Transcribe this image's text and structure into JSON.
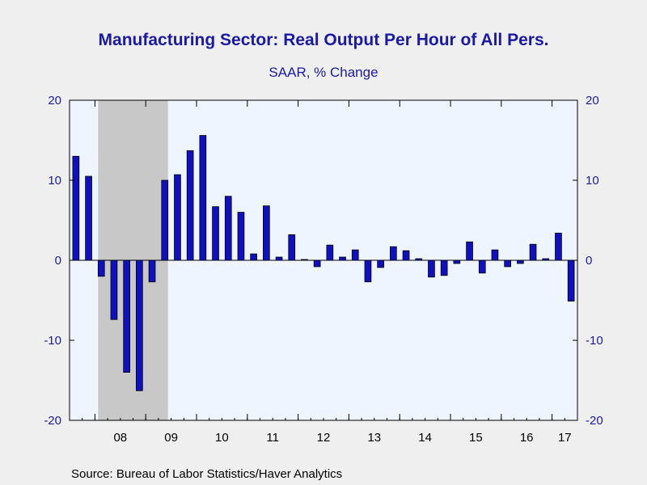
{
  "header": {
    "title": "Manufacturing Sector: Real Output Per Hour of All Pers.",
    "subtitle": "SAAR, % Change"
  },
  "footer": {
    "source": "Source:  Bureau of Labor Statistics/Haver Analytics"
  },
  "colors": {
    "background": "#efefef",
    "plot_background": "#eef5ff",
    "recession_shade": "#c8c8c8",
    "bar_fill": "#1010c0",
    "bar_stroke": "#000000",
    "text_blue": "#1a1aa6"
  },
  "chart_data": {
    "type": "bar",
    "y_ticks_left": [
      "20",
      "10",
      "0",
      "-10",
      "-20"
    ],
    "y_ticks_right": [
      "20",
      "10",
      "0",
      "-10",
      "-20"
    ],
    "y_tick_values": [
      20,
      10,
      0,
      -10,
      -20
    ],
    "x_tick_labels": [
      "08",
      "09",
      "10",
      "11",
      "12",
      "13",
      "14",
      "15",
      "16",
      "17"
    ],
    "ylim": [
      -20,
      20
    ],
    "grid": false,
    "recession": {
      "start_quarter": "2008Q1",
      "end_quarter": "2009Q2"
    },
    "categories": [
      "2007Q3",
      "2007Q4",
      "2008Q1",
      "2008Q2",
      "2008Q3",
      "2008Q4",
      "2009Q1",
      "2009Q2",
      "2009Q3",
      "2009Q4",
      "2010Q1",
      "2010Q2",
      "2010Q3",
      "2010Q4",
      "2011Q1",
      "2011Q2",
      "2011Q3",
      "2011Q4",
      "2012Q1",
      "2012Q2",
      "2012Q3",
      "2012Q4",
      "2013Q1",
      "2013Q2",
      "2013Q3",
      "2013Q4",
      "2014Q1",
      "2014Q2",
      "2014Q3",
      "2014Q4",
      "2015Q1",
      "2015Q2",
      "2015Q3",
      "2015Q4",
      "2016Q1",
      "2016Q2",
      "2016Q3",
      "2016Q4",
      "2017Q1",
      "2017Q2"
    ],
    "values": [
      13.0,
      10.5,
      -2.0,
      -7.4,
      -14.0,
      -16.3,
      -2.7,
      10.0,
      10.7,
      13.7,
      15.6,
      6.7,
      8.0,
      6.0,
      0.8,
      6.8,
      0.4,
      3.2,
      0.1,
      -0.8,
      1.9,
      0.4,
      1.3,
      -2.7,
      -0.9,
      1.7,
      1.2,
      0.2,
      -2.1,
      -1.9,
      -0.4,
      2.3,
      -1.6,
      1.3,
      -0.8,
      -0.4,
      2.0,
      0.2,
      3.4,
      -5.1
    ]
  }
}
